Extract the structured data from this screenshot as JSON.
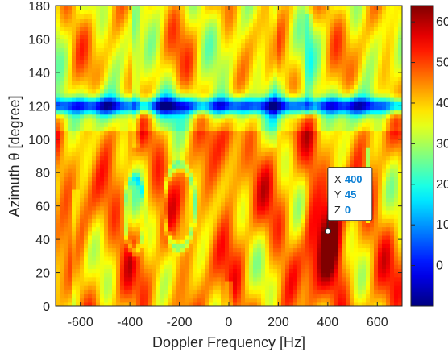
{
  "chart_data": {
    "type": "heatmap",
    "xlabel": "Doppler Frequency [Hz]",
    "ylabel": "Azimuth θ [degree]",
    "xlim": [
      -700,
      700
    ],
    "ylim": [
      0,
      180
    ],
    "xticks": [
      -600,
      -400,
      -200,
      0,
      200,
      400,
      600
    ],
    "yticks": [
      0,
      20,
      40,
      60,
      80,
      100,
      120,
      140,
      160,
      180
    ],
    "colorbar": {
      "colormap": "jet",
      "range": [
        -10,
        64
      ],
      "ticks": [
        0,
        10,
        20,
        30,
        40,
        50,
        60
      ],
      "visible_tick_labels": [
        "60",
        "50",
        "40",
        "30",
        "20",
        "10",
        "0"
      ]
    },
    "datatip": {
      "x": 400,
      "y": 45,
      "z": 0,
      "x_key": "X",
      "y_key": "Y",
      "z_key": "Z"
    },
    "description": "Angle-Doppler clutter/target map; low-value (blue) ridge along azimuth ~120 degrees; peak (dark red) near 400 Hz, 20-50 degrees"
  },
  "colors": {
    "axis": "#262626",
    "tip_value": "#0b7fd4",
    "background": "#ffffff"
  }
}
